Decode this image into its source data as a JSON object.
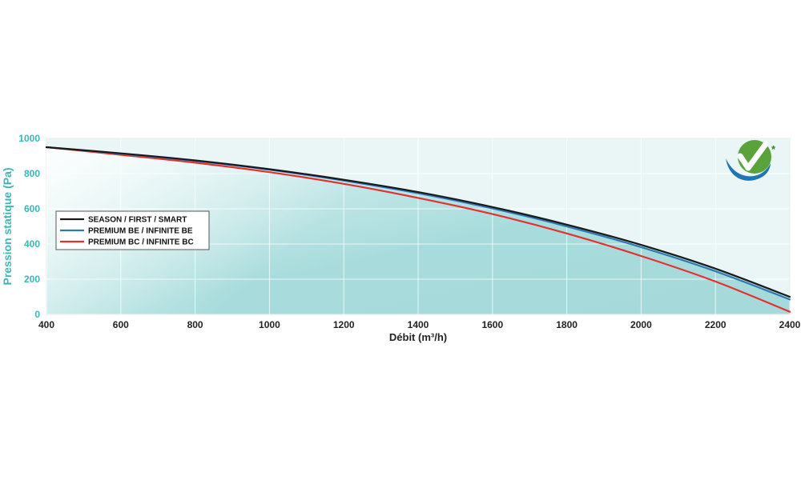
{
  "chart_data": {
    "type": "line",
    "title": "",
    "xlabel": "Débit (m³/h)",
    "ylabel": "Pression statique (Pa)",
    "xlim": [
      400,
      2400
    ],
    "ylim": [
      0,
      1000
    ],
    "xticks": [
      "400",
      "600",
      "800",
      "1000",
      "1200",
      "1400",
      "1600",
      "1800",
      "2000",
      "2200",
      "2400"
    ],
    "yticks": [
      "0",
      "200",
      "400",
      "600",
      "800",
      "1000"
    ],
    "grid": true,
    "legend_position": "left",
    "series": [
      {
        "name": "SEASON / FIRST / SMART",
        "color": "#1a1a1a",
        "x": [
          400,
          600,
          800,
          1000,
          1200,
          1400,
          1600,
          1800,
          2000,
          2200,
          2400
        ],
        "y": [
          950,
          915,
          875,
          825,
          765,
          695,
          610,
          510,
          395,
          260,
          100
        ]
      },
      {
        "name": "PREMIUM BE / INFINITE BE",
        "color": "#2f77b5",
        "x": [
          400,
          600,
          800,
          1000,
          1200,
          1400,
          1600,
          1800,
          2000,
          2200,
          2400
        ],
        "y": [
          950,
          913,
          872,
          822,
          760,
          688,
          602,
          500,
          382,
          245,
          85
        ]
      },
      {
        "name": "PREMIUM BC / INFINITE BC",
        "color": "#e53030",
        "x": [
          400,
          600,
          800,
          1000,
          1200,
          1400,
          1600,
          1800,
          2000,
          2200,
          2400
        ],
        "y": [
          950,
          907,
          862,
          808,
          742,
          662,
          570,
          460,
          332,
          187,
          15
        ]
      }
    ]
  },
  "logo": {
    "name": "quality-check-logo",
    "colors": {
      "green": "#5aa23a",
      "blue": "#1f73b7",
      "dark_green": "#3a7f2a"
    },
    "mark": "*"
  }
}
